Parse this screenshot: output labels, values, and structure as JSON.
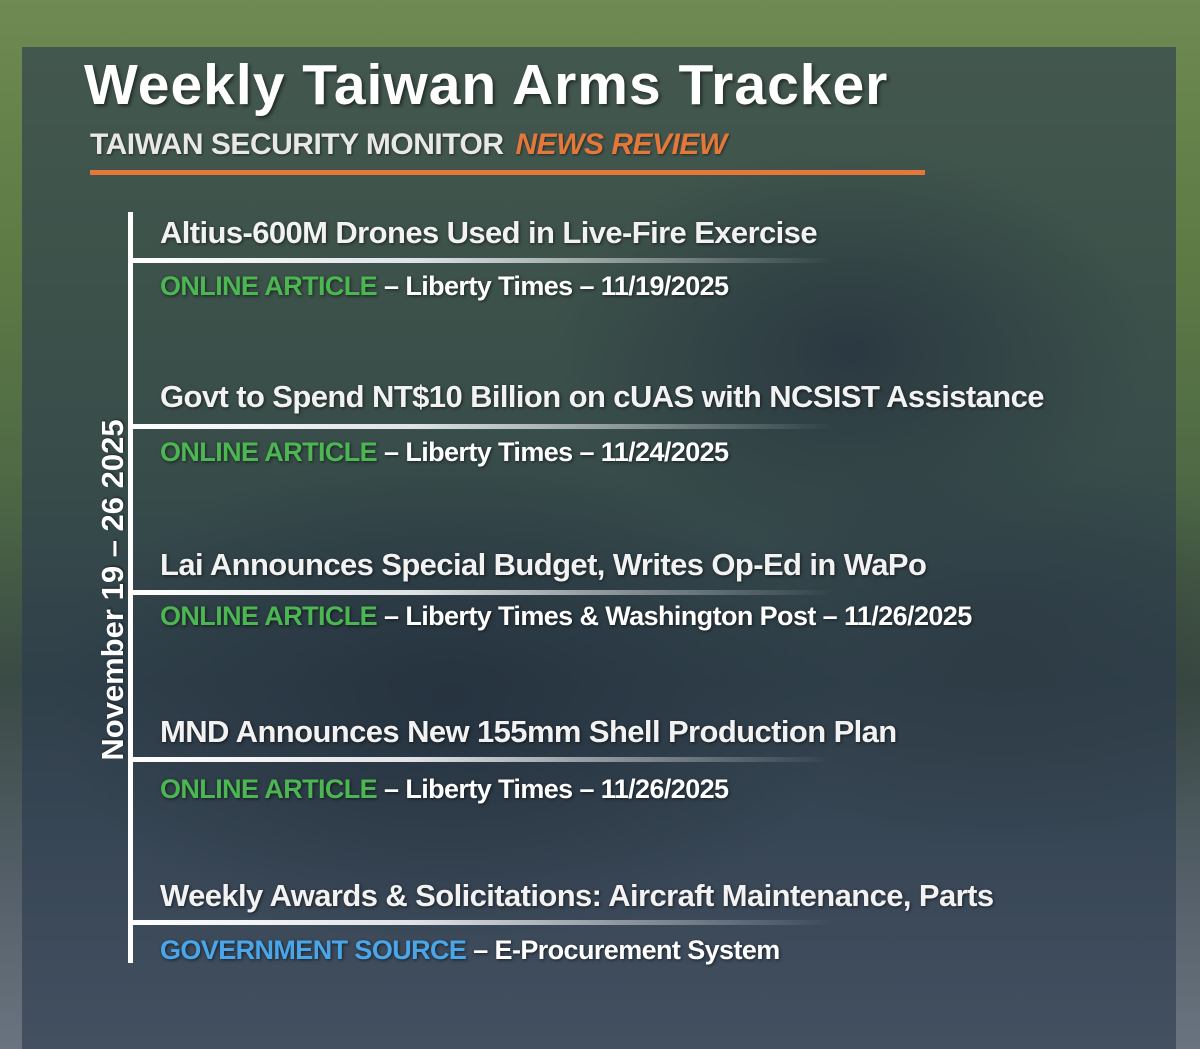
{
  "header": {
    "title": "Weekly Taiwan Arms Tracker",
    "subtitle": "TAIWAN SECURITY MONITOR",
    "subtitle_accent": "NEWS REVIEW"
  },
  "date_range": "November 19 – 26  2025",
  "colors": {
    "accent_orange": "#e4773a",
    "online_green": "#4cb652",
    "government_blue": "#4aa6e8"
  },
  "items": [
    {
      "title": "Altius-600M Drones Used in Live-Fire Exercise",
      "type": "ONLINE ARTICLE",
      "details": " – Liberty Times – 11/19/2025"
    },
    {
      "title": "Govt to Spend NT$10 Billion on cUAS with NCSIST Assistance",
      "type": "ONLINE ARTICLE",
      "details": " – Liberty Times – 11/24/2025"
    },
    {
      "title": "Lai Announces Special Budget, Writes Op-Ed in WaPo",
      "type": "ONLINE ARTICLE",
      "details": " – Liberty Times & Washington Post – 11/26/2025"
    },
    {
      "title": "MND Announces New 155mm Shell Production Plan",
      "type": "ONLINE ARTICLE",
      "details": " – Liberty Times – 11/26/2025"
    },
    {
      "title": "Weekly Awards & Solicitations: Aircraft Maintenance, Parts",
      "type": "GOVERNMENT SOURCE",
      "details": " – E-Procurement System"
    }
  ]
}
